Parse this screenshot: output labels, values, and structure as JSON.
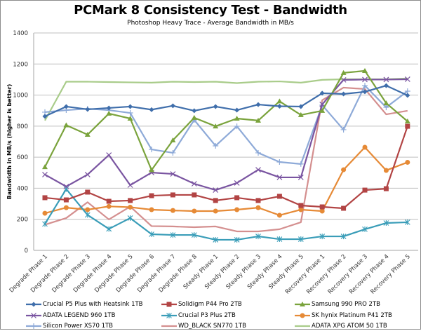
{
  "chart_data": {
    "type": "line",
    "title": "PCMark 8 Consistency Test - Bandwidth",
    "subtitle": "Photoshop Heavy Trace - Average Bandwidth in MB/s",
    "xlabel": "",
    "ylabel": "Bandwidth in MB/s (higher is better)",
    "ylim": [
      0,
      1400
    ],
    "yticks": [
      0,
      200,
      400,
      600,
      800,
      1000,
      1200,
      1400
    ],
    "grid": true,
    "legend_position": "bottom",
    "categories": [
      "Degrade Phase 1",
      "Degrade Phase 2",
      "Degrade Phase 3",
      "Degrade Phase 4",
      "Degrade Phase 5",
      "Degrade Phase 6",
      "Degrade Phase 7",
      "Degrade Phase 8",
      "Steady Phase 1",
      "Steady Phase 2",
      "Steady Phase 3",
      "Steady Phase 4",
      "Steady Phase 5",
      "Recovery Phase 1",
      "Recovery Phase 2",
      "Recovery Phase 3",
      "Recovery Phase 4",
      "Recovery Phase 5"
    ],
    "series": [
      {
        "name": "Crucial P5 Plus with Heatsink 1TB",
        "color": "#3f6eab",
        "marker": "diamond",
        "values": [
          863,
          926,
          908,
          917,
          926,
          906,
          931,
          899,
          926,
          903,
          939,
          928,
          926,
          1012,
          1007,
          1021,
          1061,
          998
        ]
      },
      {
        "name": "Solidigm P44 Pro 2TB",
        "color": "#b24444",
        "marker": "square",
        "values": [
          339,
          325,
          375,
          316,
          321,
          352,
          357,
          357,
          321,
          339,
          321,
          348,
          289,
          280,
          271,
          388,
          397,
          799
        ]
      },
      {
        "name": "Samsung 990 PRO 2TB",
        "color": "#7aa33c",
        "marker": "triangle",
        "values": [
          537,
          806,
          745,
          881,
          849,
          517,
          709,
          854,
          799,
          849,
          836,
          960,
          872,
          899,
          1143,
          1156,
          948,
          831
        ]
      },
      {
        "name": "ADATA LEGEND 960 1TB",
        "color": "#7a55a1",
        "marker": "x",
        "values": [
          488,
          411,
          488,
          614,
          420,
          501,
          492,
          429,
          388,
          434,
          519,
          470,
          470,
          940,
          1098,
          1100,
          1100,
          1102
        ]
      },
      {
        "name": "Crucial P3 Plus 2TB",
        "color": "#3a9db8",
        "marker": "star",
        "values": [
          170,
          395,
          228,
          138,
          208,
          104,
          99,
          99,
          68,
          68,
          90,
          72,
          72,
          90,
          90,
          136,
          176,
          181
        ]
      },
      {
        "name": "SK hynix Platinum P41 2TB",
        "color": "#e68a36",
        "marker": "circle",
        "values": [
          239,
          275,
          262,
          283,
          278,
          262,
          257,
          253,
          253,
          262,
          275,
          226,
          262,
          253,
          519,
          664,
          515,
          567
        ]
      },
      {
        "name": "Silicon Power XS70 1TB",
        "color": "#8eaad8",
        "marker": "plus",
        "values": [
          890,
          903,
          912,
          903,
          885,
          650,
          628,
          840,
          673,
          799,
          628,
          569,
          556,
          935,
          777,
          1061,
          921,
          1025
        ]
      },
      {
        "name": "WD_BLACK SN770 1TB",
        "color": "#d48f8f",
        "marker": "none",
        "values": [
          165,
          208,
          310,
          199,
          282,
          156,
          154,
          149,
          154,
          122,
          122,
          136,
          181,
          967,
          1048,
          1039,
          876,
          899
        ]
      },
      {
        "name": "ADATA XPG ATOM 50 1TB",
        "color": "#a9cc8a",
        "marker": "none",
        "values": [
          836,
          1086,
          1086,
          1084,
          1082,
          1080,
          1086,
          1084,
          1086,
          1077,
          1086,
          1088,
          1080,
          1098,
          1102,
          1102,
          1102,
          1107
        ]
      }
    ]
  }
}
